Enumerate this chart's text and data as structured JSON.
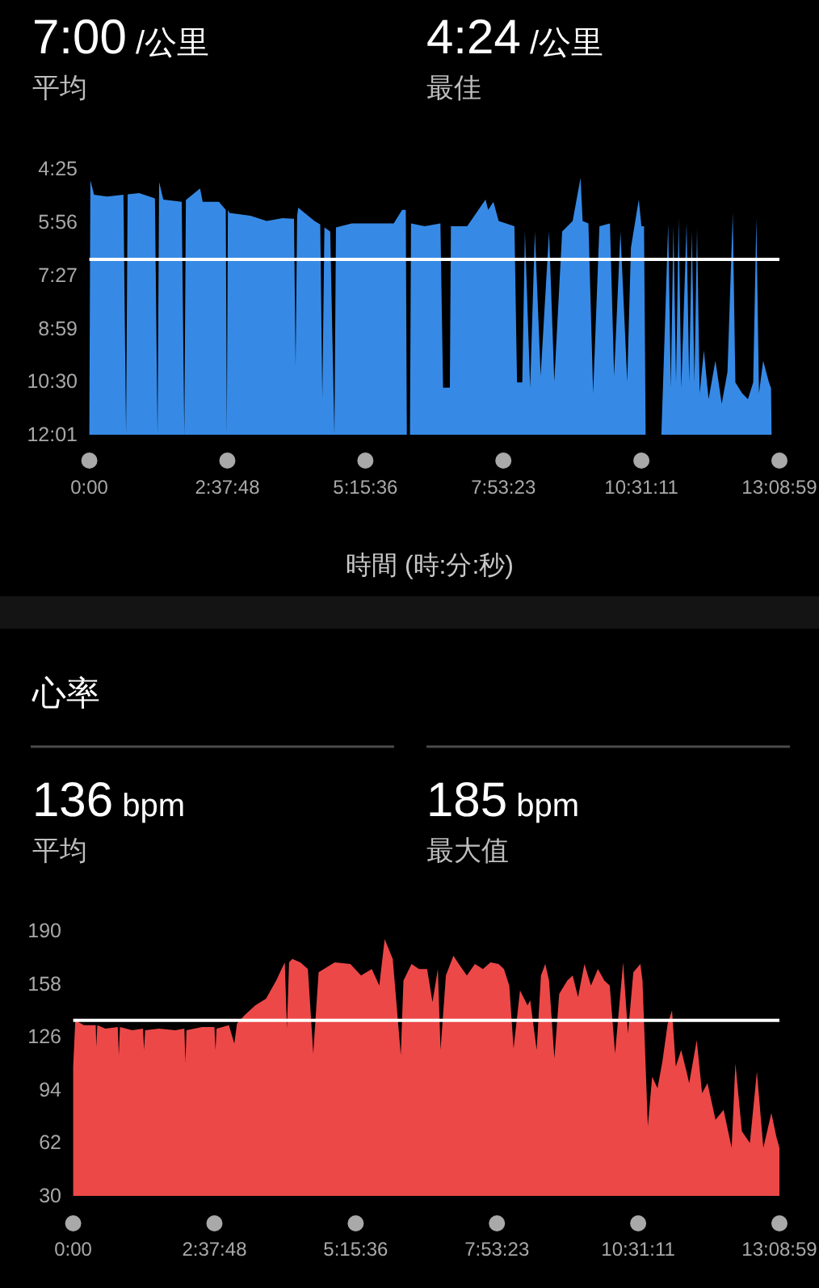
{
  "chart_data": [
    {
      "type": "area",
      "xlabel": "時間 (時:分:秒)",
      "annotations": [
        "7:00 /公里",
        "平均",
        "4:24 /公里",
        "最佳"
      ],
      "color": "#368ae6",
      "x": [
        0,
        0.02,
        0.09,
        0.34,
        0.65,
        0.7,
        0.73,
        0.95,
        1.25,
        1.3,
        1.33,
        1.41,
        1.76,
        1.81,
        1.84,
        2.11,
        2.16,
        2.47,
        2.6,
        2.62,
        2.64,
        2.67,
        3.07,
        3.38,
        3.68,
        3.9,
        3.93,
        3.96,
        3.98,
        4.29,
        4.4,
        4.44,
        4.48,
        4.59,
        4.67,
        4.7,
        5.0,
        5.4,
        5.8,
        5.96,
        6.03,
        6.05,
        6.11,
        6.13,
        6.39,
        6.69,
        6.74,
        6.87,
        6.89,
        7.2,
        7.55,
        7.6,
        7.7,
        7.8,
        8.1,
        8.15,
        8.25,
        8.3,
        8.4,
        8.49,
        8.6,
        8.76,
        8.86,
        9.01,
        9.21,
        9.36,
        9.4,
        9.51,
        9.6,
        9.72,
        9.92,
        10.0,
        10.12,
        10.25,
        10.32,
        10.47,
        10.52,
        10.57,
        10.6,
        10.9,
        10.93,
        11.03,
        11.08,
        11.13,
        11.18,
        11.23,
        11.28,
        11.38,
        11.43,
        11.48,
        11.53,
        11.58,
        11.63,
        11.71,
        11.8,
        11.93,
        12.05,
        12.16,
        12.26,
        12.31,
        12.44,
        12.55,
        12.65,
        12.71,
        12.76,
        12.84,
        12.95,
        12.99,
        13.0
      ],
      "values": [
        721,
        284,
        309,
        312,
        309,
        721,
        308,
        306,
        315,
        721,
        287,
        317,
        321,
        721,
        318,
        298,
        321,
        321,
        335,
        721,
        335,
        340,
        345,
        354,
        349,
        350,
        603,
        345,
        331,
        354,
        360,
        659,
        365,
        372,
        721,
        365,
        358,
        358,
        358,
        335,
        335,
        721,
        721,
        358,
        363,
        358,
        640,
        640,
        363,
        363,
        317,
        335,
        321,
        354,
        363,
        631,
        631,
        372,
        640,
        372,
        620,
        372,
        630,
        372,
        354,
        280,
        354,
        358,
        650,
        363,
        358,
        620,
        372,
        630,
        400,
        317,
        363,
        363,
        721,
        721,
        641,
        358,
        641,
        363,
        631,
        349,
        641,
        358,
        631,
        372,
        631,
        367,
        650,
        576,
        660,
        594,
        668,
        613,
        340,
        631,
        650,
        660,
        631,
        349,
        650,
        594,
        631,
        641,
        721
      ],
      "xlim": [
        0,
        13.1497
      ],
      "xticks": [
        {
          "value": 0,
          "label": "0:00"
        },
        {
          "value": 2.63,
          "label": "2:37:48"
        },
        {
          "value": 5.26,
          "label": "5:15:36"
        },
        {
          "value": 7.8897,
          "label": "7:53:23"
        },
        {
          "value": 10.5197,
          "label": "10:31:11"
        },
        {
          "value": 13.1497,
          "label": "13:08:59"
        }
      ],
      "ylim": [
        721,
        265
      ],
      "yticks": [
        {
          "value": 265,
          "label": "4:25"
        },
        {
          "value": 356,
          "label": "5:56"
        },
        {
          "value": 447,
          "label": "7:27"
        },
        {
          "value": 539,
          "label": "8:59"
        },
        {
          "value": 630,
          "label": "10:30"
        },
        {
          "value": 721,
          "label": "12:01"
        }
      ],
      "ref_lines": [
        {
          "axis": "y",
          "value": 420,
          "color": "#ffffff"
        }
      ]
    },
    {
      "type": "area",
      "title": "心率",
      "annotations": [
        "136 bpm",
        "平均",
        "185 bpm",
        "最大值"
      ],
      "color": "#ec4848",
      "x": [
        0,
        0.04,
        0.2,
        0.42,
        0.43,
        0.45,
        0.6,
        0.83,
        0.85,
        0.87,
        1.1,
        1.3,
        1.32,
        1.34,
        1.6,
        1.9,
        2.07,
        2.09,
        2.11,
        2.4,
        2.63,
        2.65,
        2.67,
        2.9,
        3.0,
        3.05,
        3.19,
        3.39,
        3.59,
        3.78,
        3.88,
        3.94,
        3.98,
        4.02,
        4.08,
        4.23,
        4.37,
        4.47,
        4.57,
        4.87,
        5.16,
        5.36,
        5.56,
        5.7,
        5.8,
        5.95,
        6.1,
        6.15,
        6.3,
        6.44,
        6.59,
        6.69,
        6.79,
        6.84,
        6.94,
        7.08,
        7.18,
        7.33,
        7.48,
        7.63,
        7.77,
        7.92,
        8.02,
        8.12,
        8.2,
        8.32,
        8.46,
        8.51,
        8.63,
        8.71,
        8.79,
        8.86,
        8.96,
        9.05,
        9.2,
        9.3,
        9.4,
        9.52,
        9.64,
        9.77,
        9.89,
        9.99,
        10.09,
        10.24,
        10.33,
        10.43,
        10.56,
        10.6,
        10.7,
        10.78,
        10.88,
        10.97,
        11.07,
        11.15,
        11.22,
        11.32,
        11.42,
        11.47,
        11.61,
        11.71,
        11.81,
        11.96,
        12.11,
        12.26,
        12.33,
        12.45,
        12.6,
        12.73,
        12.85,
        13.0,
        13.09,
        13.1497
      ],
      "values": [
        108,
        136,
        133,
        133,
        120,
        133,
        131,
        132,
        115,
        132,
        130,
        131,
        118,
        130,
        131,
        130,
        131,
        111,
        130,
        132,
        132,
        118,
        131,
        133,
        122,
        134,
        139,
        145,
        149,
        160,
        167,
        171,
        131,
        171,
        173,
        171,
        167,
        116,
        165,
        171,
        170,
        163,
        167,
        157,
        185,
        173,
        115,
        160,
        170,
        167,
        167,
        147,
        167,
        118,
        163,
        175,
        170,
        163,
        170,
        167,
        171,
        170,
        167,
        157,
        119,
        154,
        145,
        148,
        118,
        163,
        170,
        160,
        113,
        152,
        160,
        163,
        150,
        170,
        157,
        167,
        160,
        157,
        116,
        171,
        128,
        165,
        170,
        160,
        72,
        102,
        95,
        111,
        134,
        142,
        108,
        118,
        105,
        98,
        124,
        92,
        98,
        76,
        82,
        59,
        110,
        69,
        62,
        105,
        59,
        80,
        66,
        59
      ],
      "xlim": [
        0,
        13.1497
      ],
      "xticks": [
        {
          "value": 0,
          "label": "0:00"
        },
        {
          "value": 2.63,
          "label": "2:37:48"
        },
        {
          "value": 5.26,
          "label": "5:15:36"
        },
        {
          "value": 7.8897,
          "label": "7:53:23"
        },
        {
          "value": 10.5197,
          "label": "10:31:11"
        },
        {
          "value": 13.1497,
          "label": "13:08:59"
        }
      ],
      "ylim": [
        30,
        190
      ],
      "yticks": [
        30,
        62,
        94,
        126,
        158,
        190
      ],
      "ref_lines": [
        {
          "axis": "y",
          "value": 136,
          "color": "#ffffff"
        }
      ]
    }
  ]
}
